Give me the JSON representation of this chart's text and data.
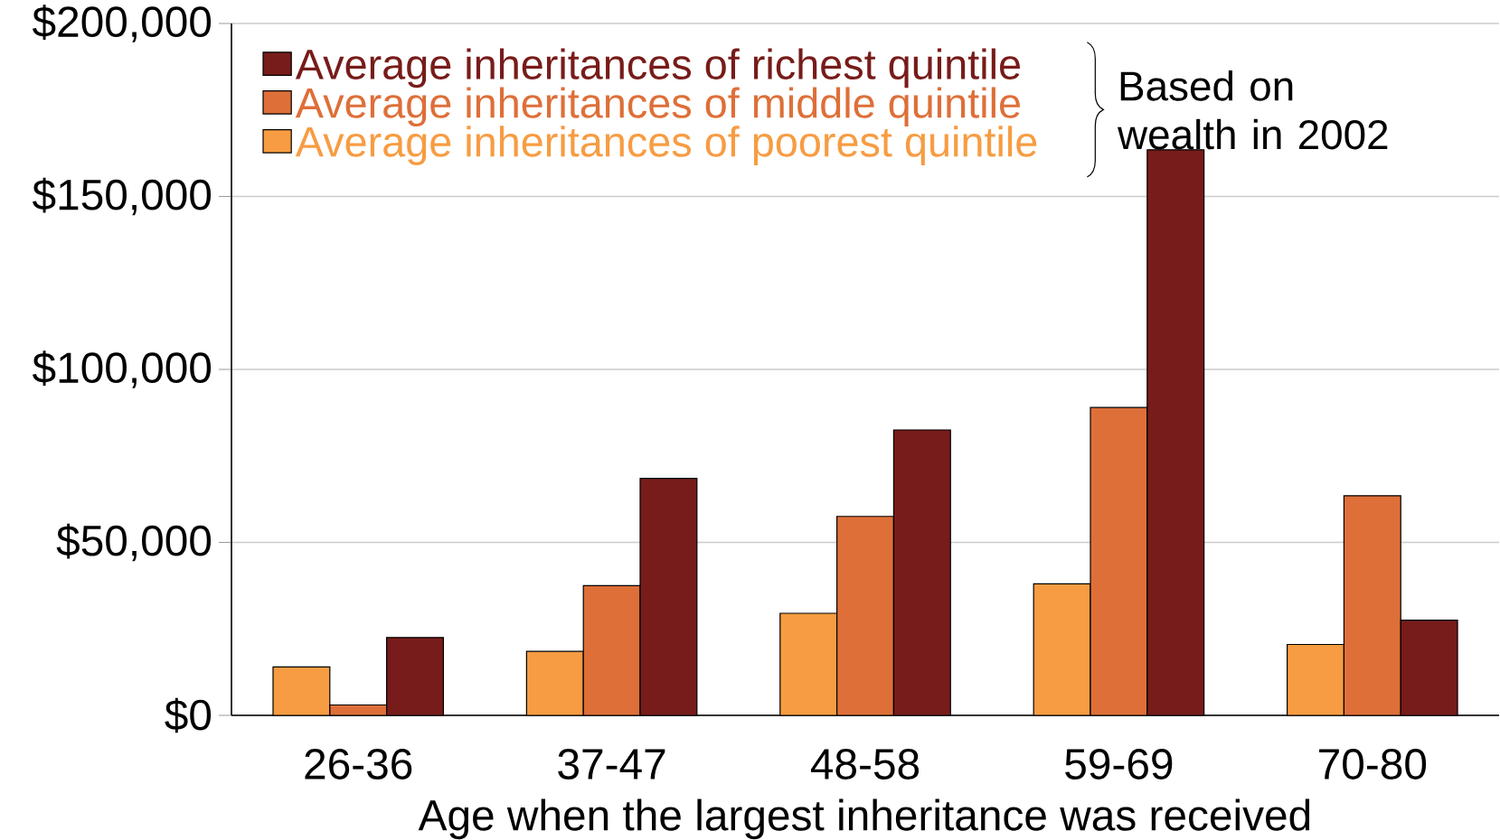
{
  "chart_data": {
    "type": "bar",
    "categories": [
      "26-36",
      "37-47",
      "48-58",
      "59-69",
      "70-80"
    ],
    "xlabel": "Age when the largest inheritance was received",
    "series": [
      {
        "name": "Average inheritances of poorest quintile",
        "color": "#f79c42",
        "values": [
          14000,
          18500,
          29500,
          38000,
          20500
        ]
      },
      {
        "name": "Average inheritances of middle quintile",
        "color": "#de6f38",
        "values": [
          3000,
          37500,
          57500,
          89000,
          63500
        ]
      },
      {
        "name": "Average inheritances of richest quintile",
        "color": "#771c1a",
        "values": [
          22500,
          68500,
          82500,
          163500,
          27500
        ]
      }
    ],
    "ylim": [
      0,
      200000
    ],
    "yticks": [
      {
        "value": 0,
        "label": "$0"
      },
      {
        "value": 50000,
        "label": "$50,000"
      },
      {
        "value": 100000,
        "label": "$100,000"
      },
      {
        "value": 150000,
        "label": "$150,000"
      },
      {
        "value": 200000,
        "label": "$200,000"
      }
    ],
    "grid": "y",
    "legend": "top left",
    "annotations": [
      "Based on wealth in 2002"
    ]
  }
}
